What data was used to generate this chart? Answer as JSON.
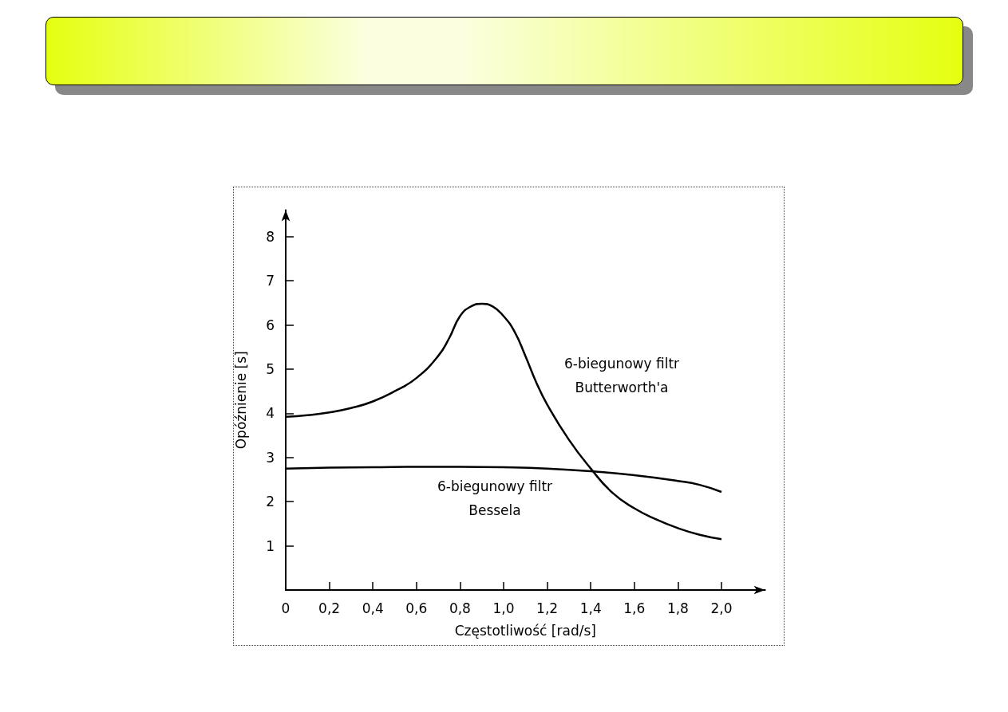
{
  "chart_data": {
    "type": "line",
    "xlabel": "Częstotliwość [rad/s]",
    "ylabel": "Opóźnienie [s]",
    "xlim": [
      0,
      2.2
    ],
    "ylim": [
      0,
      8.6
    ],
    "xticks": [
      0,
      {
        "value": 0.2,
        "label": "0,2"
      },
      {
        "value": 0.4,
        "label": "0,4"
      },
      {
        "value": 0.6,
        "label": "0,6"
      },
      {
        "value": 0.8,
        "label": "0,8"
      },
      {
        "value": 1.0,
        "label": "1,0"
      },
      {
        "value": 1.2,
        "label": "1,2"
      },
      {
        "value": 1.4,
        "label": "1,4"
      },
      {
        "value": 1.6,
        "label": "1,6"
      },
      {
        "value": 1.8,
        "label": "1,8"
      },
      {
        "value": 2.0,
        "label": "2,0"
      }
    ],
    "yticks": [
      1,
      2,
      3,
      4,
      5,
      6,
      7,
      8
    ],
    "grid": false,
    "marker": "none",
    "line_style": "solid",
    "series": [
      {
        "color": "#000000",
        "x": [
          0,
          0.1,
          0.2,
          0.3,
          0.4,
          0.5,
          0.6,
          0.7,
          0.75,
          0.8,
          0.85,
          0.9,
          0.95,
          1.0,
          1.05,
          1.1,
          1.15,
          1.2,
          1.3,
          1.4,
          1.5,
          1.6,
          1.7,
          1.8,
          1.9,
          2.0
        ],
        "values": [
          3.92,
          3.96,
          4.02,
          4.12,
          4.27,
          4.5,
          4.8,
          5.3,
          5.7,
          6.2,
          6.42,
          6.48,
          6.42,
          6.2,
          5.85,
          5.3,
          4.7,
          4.2,
          3.4,
          2.75,
          2.2,
          1.85,
          1.6,
          1.4,
          1.25,
          1.15
        ]
      },
      {
        "color": "#000000",
        "x": [
          0,
          0.2,
          0.4,
          0.6,
          0.8,
          1.0,
          1.2,
          1.4,
          1.6,
          1.8,
          1.9,
          2.0
        ],
        "values": [
          2.75,
          2.77,
          2.78,
          2.79,
          2.79,
          2.78,
          2.75,
          2.69,
          2.6,
          2.47,
          2.38,
          2.22
        ]
      }
    ],
    "annotations": [
      "6-biegunowy filtr\nButterworth'a",
      "6-biegunowy filtr\nBessela"
    ]
  }
}
